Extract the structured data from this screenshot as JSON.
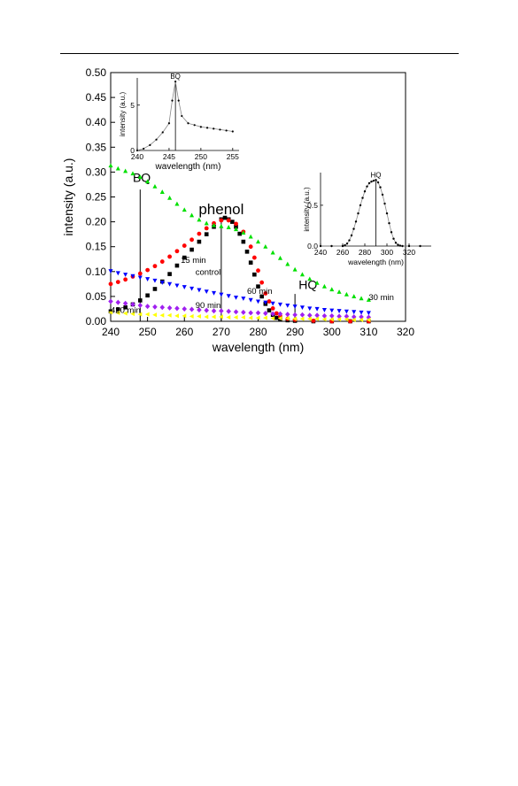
{
  "chart_data": [
    {
      "type": "scatter",
      "xlabel": "wavelength (nm)",
      "ylabel": "intensity (a.u.)",
      "xlim": [
        240,
        320
      ],
      "ylim": [
        0,
        0.5
      ],
      "xticks": [
        240,
        250,
        260,
        270,
        280,
        290,
        300,
        310,
        320
      ],
      "yticks": [
        0.0,
        0.05,
        0.1,
        0.15,
        0.2,
        0.25,
        0.3,
        0.35,
        0.4,
        0.45,
        0.5
      ],
      "ytick_labels": [
        "0.00",
        "0.05",
        "0.10",
        "0.15",
        "0.20",
        "0.25",
        "0.30",
        "0.35",
        "0.40",
        "0.45",
        "0.50"
      ],
      "grid": false,
      "series": [
        {
          "name": "control",
          "color": "#000000",
          "marker": "square",
          "x": [
            240,
            242,
            244,
            246,
            248,
            250,
            252,
            254,
            256,
            258,
            260,
            262,
            264,
            266,
            268,
            270,
            271,
            272,
            273,
            274,
            275,
            276,
            277,
            278,
            279,
            280,
            281,
            282,
            283,
            284,
            285,
            286,
            288,
            290,
            295,
            300,
            305,
            310
          ],
          "y": [
            0.02,
            0.024,
            0.028,
            0.034,
            0.042,
            0.052,
            0.065,
            0.08,
            0.095,
            0.112,
            0.128,
            0.144,
            0.16,
            0.175,
            0.19,
            0.205,
            0.208,
            0.205,
            0.2,
            0.19,
            0.176,
            0.16,
            0.14,
            0.118,
            0.094,
            0.07,
            0.05,
            0.035,
            0.022,
            0.013,
            0.007,
            0.004,
            0.002,
            0.001,
            0.0,
            0.0,
            0.0,
            0.0
          ]
        },
        {
          "name": "15 min",
          "color": "#ff0000",
          "marker": "circle",
          "x": [
            240,
            242,
            244,
            246,
            248,
            250,
            252,
            254,
            256,
            258,
            260,
            262,
            264,
            266,
            268,
            270,
            272,
            274,
            276,
            278,
            279,
            280,
            281,
            282,
            283,
            284,
            285,
            286,
            288,
            290,
            295,
            300,
            305,
            310
          ],
          "y": [
            0.075,
            0.079,
            0.084,
            0.09,
            0.096,
            0.103,
            0.111,
            0.12,
            0.13,
            0.141,
            0.152,
            0.164,
            0.176,
            0.187,
            0.197,
            0.203,
            0.203,
            0.196,
            0.18,
            0.15,
            0.128,
            0.102,
            0.078,
            0.056,
            0.04,
            0.026,
            0.016,
            0.01,
            0.005,
            0.003,
            0.001,
            0.0,
            0.0,
            0.0
          ]
        },
        {
          "name": "30 min",
          "color": "#00e000",
          "marker": "triangle-up",
          "x": [
            240,
            242,
            244,
            246,
            248,
            250,
            252,
            254,
            256,
            258,
            260,
            262,
            264,
            266,
            268,
            270,
            272,
            274,
            276,
            278,
            280,
            282,
            284,
            286,
            288,
            290,
            292,
            294,
            296,
            298,
            300,
            302,
            304,
            306,
            308,
            310
          ],
          "y": [
            0.313,
            0.307,
            0.302,
            0.297,
            0.29,
            0.281,
            0.271,
            0.26,
            0.248,
            0.236,
            0.224,
            0.213,
            0.204,
            0.197,
            0.193,
            0.191,
            0.189,
            0.185,
            0.178,
            0.17,
            0.16,
            0.15,
            0.138,
            0.127,
            0.115,
            0.104,
            0.094,
            0.085,
            0.077,
            0.07,
            0.064,
            0.059,
            0.054,
            0.05,
            0.046,
            0.043
          ]
        },
        {
          "name": "60 min",
          "color": "#0000ff",
          "marker": "triangle-down",
          "x": [
            240,
            242,
            244,
            246,
            248,
            250,
            252,
            254,
            256,
            258,
            260,
            262,
            264,
            266,
            268,
            270,
            272,
            274,
            276,
            278,
            280,
            282,
            284,
            286,
            288,
            290,
            292,
            294,
            296,
            298,
            300,
            302,
            304,
            306,
            308,
            310
          ],
          "y": [
            0.101,
            0.097,
            0.094,
            0.091,
            0.088,
            0.085,
            0.082,
            0.078,
            0.075,
            0.072,
            0.069,
            0.066,
            0.063,
            0.06,
            0.057,
            0.054,
            0.051,
            0.048,
            0.046,
            0.043,
            0.04,
            0.038,
            0.036,
            0.034,
            0.032,
            0.03,
            0.028,
            0.026,
            0.025,
            0.023,
            0.022,
            0.021,
            0.02,
            0.019,
            0.018,
            0.017
          ]
        },
        {
          "name": "90 min",
          "color": "#a020f0",
          "marker": "diamond",
          "x": [
            240,
            242,
            244,
            246,
            248,
            250,
            252,
            254,
            256,
            258,
            260,
            262,
            264,
            266,
            268,
            270,
            272,
            274,
            276,
            278,
            280,
            282,
            284,
            286,
            288,
            290,
            292,
            294,
            296,
            298,
            300,
            302,
            304,
            306,
            308,
            310
          ],
          "y": [
            0.04,
            0.038,
            0.036,
            0.034,
            0.032,
            0.03,
            0.029,
            0.028,
            0.027,
            0.026,
            0.025,
            0.024,
            0.023,
            0.022,
            0.021,
            0.021,
            0.02,
            0.019,
            0.018,
            0.017,
            0.017,
            0.016,
            0.015,
            0.015,
            0.014,
            0.013,
            0.013,
            0.012,
            0.012,
            0.011,
            0.011,
            0.01,
            0.01,
            0.009,
            0.009,
            0.008
          ]
        },
        {
          "name": "420 min",
          "color": "#ffff00",
          "marker": "triangle-left",
          "x": [
            240,
            242,
            244,
            246,
            248,
            250,
            252,
            254,
            256,
            258,
            260,
            262,
            264,
            266,
            268,
            270,
            272,
            274,
            276,
            278,
            280,
            282,
            284,
            286,
            288,
            290,
            292,
            294,
            296,
            298,
            300,
            302,
            304,
            306,
            308,
            310
          ],
          "y": [
            0.018,
            0.017,
            0.016,
            0.015,
            0.014,
            0.014,
            0.013,
            0.012,
            0.012,
            0.011,
            0.011,
            0.01,
            0.01,
            0.009,
            0.009,
            0.009,
            0.008,
            0.008,
            0.008,
            0.007,
            0.007,
            0.007,
            0.006,
            0.006,
            0.006,
            0.005,
            0.005,
            0.005,
            0.005,
            0.004,
            0.004,
            0.004,
            0.004,
            0.003,
            0.003,
            0.003
          ]
        }
      ],
      "series_labels": [
        {
          "text": "15 min",
          "x": 259,
          "y": 0.117
        },
        {
          "text": "control",
          "x": 263,
          "y": 0.093
        },
        {
          "text": "30 min",
          "x": 310,
          "y": 0.043
        },
        {
          "text": "60 min",
          "x": 277,
          "y": 0.055
        },
        {
          "text": "90 min",
          "x": 263,
          "y": 0.027
        },
        {
          "text": "420 min",
          "x": 240,
          "y": 0.017
        }
      ],
      "annotations": [
        {
          "text": "BQ",
          "x": 246,
          "y": 0.28,
          "line_x": 248
        },
        {
          "text": "phenol",
          "x": 270,
          "y": 0.215,
          "line_x": 270
        },
        {
          "text": "HQ",
          "x": 291,
          "y": 0.065,
          "line_x": 290
        }
      ]
    },
    {
      "type": "line",
      "xlabel": "wavelength (nm)",
      "ylabel": "intensity (a.u.)",
      "xlim": [
        240,
        256
      ],
      "ylim": [
        0,
        8
      ],
      "xticks": [
        240,
        245,
        250,
        255
      ],
      "yticks": [
        0,
        5
      ],
      "annotation": {
        "text": "BQ",
        "x": 246
      },
      "x": [
        240,
        241,
        242,
        243,
        244,
        245,
        245.5,
        246,
        246.5,
        247,
        248,
        249,
        250,
        251,
        252,
        253,
        254,
        255
      ],
      "y": [
        0.0,
        0.2,
        0.6,
        1.2,
        2.0,
        3.0,
        5.5,
        7.6,
        5.5,
        3.8,
        3.0,
        2.8,
        2.6,
        2.5,
        2.4,
        2.3,
        2.2,
        2.1
      ]
    },
    {
      "type": "line",
      "xlabel": "wavelength (nm)",
      "ylabel": "intensity (a.u.)",
      "xlim": [
        240,
        340
      ],
      "ylim": [
        0,
        0.9
      ],
      "xticks": [
        240,
        260,
        280,
        300,
        320
      ],
      "yticks": [
        0.0,
        0.5
      ],
      "ytick_labels": [
        "0.0",
        "0.5"
      ],
      "annotation": {
        "text": "HQ",
        "x": 290
      },
      "x": [
        240,
        250,
        260,
        262,
        264,
        266,
        268,
        270,
        272,
        274,
        276,
        278,
        280,
        282,
        284,
        286,
        288,
        290,
        292,
        294,
        296,
        298,
        300,
        302,
        304,
        306,
        308,
        310,
        312,
        314,
        320,
        330
      ],
      "y": [
        0.0,
        0.0,
        0.0,
        0.01,
        0.03,
        0.07,
        0.13,
        0.21,
        0.3,
        0.4,
        0.5,
        0.59,
        0.67,
        0.73,
        0.77,
        0.79,
        0.8,
        0.81,
        0.78,
        0.72,
        0.63,
        0.52,
        0.4,
        0.28,
        0.17,
        0.09,
        0.04,
        0.015,
        0.005,
        0.0,
        0.0,
        0.0
      ]
    }
  ]
}
